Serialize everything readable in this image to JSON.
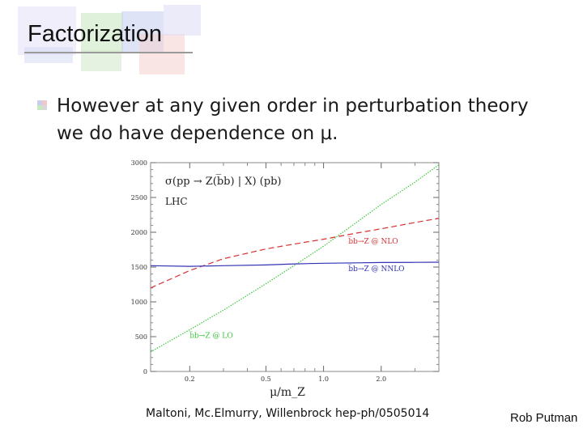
{
  "slide": {
    "title": "Factorization",
    "bullet": "However at any given order in perturbation theory we do have dependence on μ.",
    "citation": "Maltoni, Mc.Elmurry, Willenbrock  hep-ph/0505014",
    "author": "Rob Putman",
    "colors": {
      "deco_green": "#b8dcb0",
      "deco_blue": "#b9c6ea",
      "deco_pink": "#f2c4c4",
      "deco_lavender": "#d4d2f0"
    }
  },
  "chart_data": {
    "type": "line",
    "title": "σ(pp → Z(b̅b) | X)  (pb)",
    "subtitle": "LHC",
    "xlabel": "μ/m_Z",
    "ylabel": "",
    "xscale": "log",
    "xlim": [
      0.125,
      4.0
    ],
    "ylim": [
      0,
      3000
    ],
    "xticks": [
      0.2,
      0.5,
      1.0,
      2.0
    ],
    "xtick_labels": [
      "0.2",
      "0.5",
      "1.0",
      "2.0"
    ],
    "yticks": [
      0,
      500,
      1000,
      1500,
      2000,
      2500,
      3000
    ],
    "ytick_labels": [
      "0",
      "500",
      "1000",
      "1500",
      "2000",
      "2500",
      "3000"
    ],
    "grid": false,
    "series": [
      {
        "name": "b̅b→Z @ LO",
        "color": "#3cc83c",
        "dash": "dotted",
        "x": [
          0.125,
          0.2,
          0.3,
          0.5,
          0.7,
          1.0,
          1.5,
          2.0,
          3.0,
          4.0
        ],
        "y": [
          280,
          600,
          880,
          1260,
          1520,
          1800,
          2150,
          2400,
          2720,
          2970
        ],
        "label_x": 0.2,
        "label_y": 480
      },
      {
        "name": "b̅b→Z @ NLO",
        "color": "#d83232",
        "dash": "dashed",
        "x": [
          0.125,
          0.2,
          0.3,
          0.5,
          0.7,
          1.0,
          1.5,
          2.0,
          3.0,
          4.0
        ],
        "y": [
          1200,
          1450,
          1620,
          1760,
          1830,
          1900,
          1990,
          2050,
          2140,
          2200
        ],
        "label_x": 1.35,
        "label_y": 1840
      },
      {
        "name": "b̅b→Z @ NNLO",
        "color": "#3232b4",
        "dash": "solid",
        "x": [
          0.125,
          0.2,
          0.3,
          0.5,
          0.7,
          1.0,
          1.5,
          2.0,
          3.0,
          4.0
        ],
        "y": [
          1520,
          1510,
          1520,
          1530,
          1545,
          1555,
          1560,
          1565,
          1568,
          1570
        ],
        "label_x": 1.35,
        "label_y": 1440
      }
    ]
  }
}
